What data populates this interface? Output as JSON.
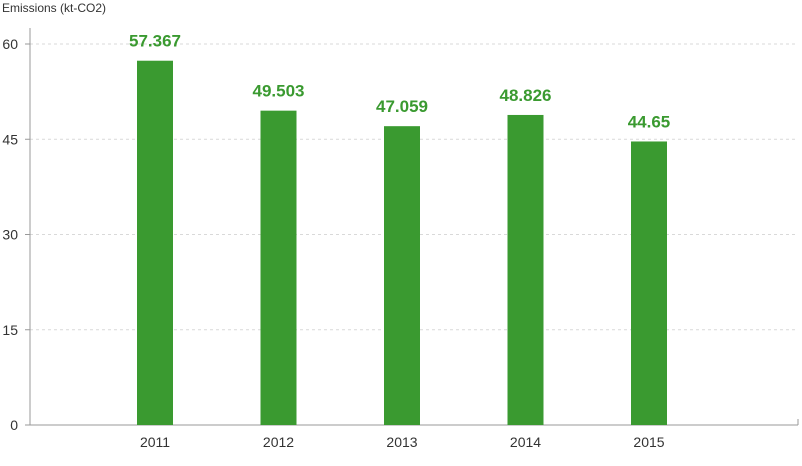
{
  "chart_data": {
    "type": "bar",
    "ylabel": "Emissions (kt-CO2)",
    "xlabel": "",
    "categories": [
      "2011",
      "2012",
      "2013",
      "2014",
      "2015"
    ],
    "values": [
      57.367,
      49.503,
      47.059,
      48.826,
      44.65
    ],
    "data_labels": [
      "57.367",
      "49.503",
      "47.059",
      "48.826",
      "44.65"
    ],
    "ylim": [
      0,
      60
    ],
    "yticks": [
      0,
      15,
      30,
      45,
      60
    ],
    "ytick_labels": [
      "0",
      "15",
      "30",
      "45",
      "60"
    ],
    "grid": true,
    "legend": "none",
    "bar_color": "#3a9a30",
    "label_color": "#3a9a30"
  }
}
